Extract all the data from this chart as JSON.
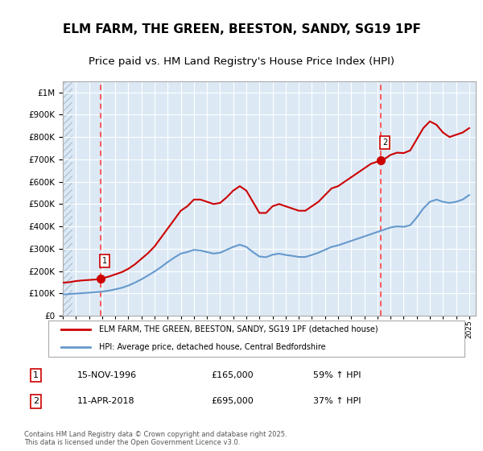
{
  "title_line1": "ELM FARM, THE GREEN, BEESTON, SANDY, SG19 1PF",
  "title_line2": "Price paid vs. HM Land Registry's House Price Index (HPI)",
  "title_fontsize": 11,
  "subtitle_fontsize": 9.5,
  "ylabel_ticks": [
    "£0",
    "£100K",
    "£200K",
    "£300K",
    "£400K",
    "£500K",
    "£600K",
    "£700K",
    "£800K",
    "£900K",
    "£1M"
  ],
  "ytick_values": [
    0,
    100000,
    200000,
    300000,
    400000,
    500000,
    600000,
    700000,
    800000,
    900000,
    1000000
  ],
  "ylim": [
    0,
    1050000
  ],
  "xlim_start": 1994.0,
  "xlim_end": 2025.5,
  "background_color": "#dce9f5",
  "plot_bg_color": "#dce9f5",
  "hatch_color": "#b0c4d8",
  "grid_color": "#ffffff",
  "red_line_color": "#cc0000",
  "blue_line_color": "#6699cc",
  "marker_color": "#cc0000",
  "dashed_line_color": "#ff4444",
  "annotation_box_color": "#ffffff",
  "annotation_border_color": "#cc0000",
  "legend_label1": "ELM FARM, THE GREEN, BEESTON, SANDY, SG19 1PF (detached house)",
  "legend_label2": "HPI: Average price, detached house, Central Bedfordshire",
  "footnote": "Contains HM Land Registry data © Crown copyright and database right 2025.\nThis data is licensed under the Open Government Licence v3.0.",
  "sale1_label": "1",
  "sale1_date": "15-NOV-1996",
  "sale1_price": "£165,000",
  "sale1_hpi": "59% ↑ HPI",
  "sale1_year": 1996.87,
  "sale1_value": 165000,
  "sale2_label": "2",
  "sale2_date": "11-APR-2018",
  "sale2_price": "£695,000",
  "sale2_hpi": "37% ↑ HPI",
  "sale2_year": 2018.28,
  "sale2_value": 695000,
  "hpi_red_x": [
    1994.0,
    1994.5,
    1995.0,
    1995.5,
    1996.0,
    1996.5,
    1996.87,
    1997.5,
    1998.0,
    1998.5,
    1999.0,
    1999.5,
    2000.0,
    2000.5,
    2001.0,
    2001.5,
    2002.0,
    2002.5,
    2003.0,
    2003.5,
    2004.0,
    2004.5,
    2005.0,
    2005.5,
    2006.0,
    2006.5,
    2007.0,
    2007.5,
    2008.0,
    2008.5,
    2009.0,
    2009.5,
    2010.0,
    2010.5,
    2011.0,
    2011.5,
    2012.0,
    2012.5,
    2013.0,
    2013.5,
    2014.0,
    2014.5,
    2015.0,
    2015.5,
    2016.0,
    2016.5,
    2017.0,
    2017.5,
    2018.0,
    2018.28
  ],
  "hpi_red_y": [
    148000,
    150000,
    155000,
    158000,
    160000,
    162000,
    165000,
    175000,
    185000,
    195000,
    210000,
    230000,
    255000,
    280000,
    310000,
    350000,
    390000,
    430000,
    470000,
    490000,
    520000,
    520000,
    510000,
    500000,
    505000,
    530000,
    560000,
    580000,
    560000,
    510000,
    460000,
    460000,
    490000,
    500000,
    490000,
    480000,
    470000,
    470000,
    490000,
    510000,
    540000,
    570000,
    580000,
    600000,
    620000,
    640000,
    660000,
    680000,
    690000,
    695000
  ],
  "hpi_blue_x": [
    1994.0,
    1994.5,
    1995.0,
    1995.5,
    1996.0,
    1996.5,
    1997.0,
    1997.5,
    1998.0,
    1998.5,
    1999.0,
    1999.5,
    2000.0,
    2000.5,
    2001.0,
    2001.5,
    2002.0,
    2002.5,
    2003.0,
    2003.5,
    2004.0,
    2004.5,
    2005.0,
    2005.5,
    2006.0,
    2006.5,
    2007.0,
    2007.5,
    2008.0,
    2008.5,
    2009.0,
    2009.5,
    2010.0,
    2010.5,
    2011.0,
    2011.5,
    2012.0,
    2012.5,
    2013.0,
    2013.5,
    2014.0,
    2014.5,
    2015.0,
    2015.5,
    2016.0,
    2016.5,
    2017.0,
    2017.5,
    2018.0,
    2018.5,
    2019.0,
    2019.5,
    2020.0,
    2020.5,
    2021.0,
    2021.5,
    2022.0,
    2022.5,
    2023.0,
    2023.5,
    2024.0,
    2024.5,
    2025.0
  ],
  "hpi_blue_y": [
    95000,
    97000,
    99000,
    101000,
    103000,
    105000,
    108000,
    112000,
    118000,
    125000,
    135000,
    148000,
    163000,
    180000,
    198000,
    218000,
    240000,
    260000,
    278000,
    285000,
    295000,
    292000,
    285000,
    278000,
    282000,
    295000,
    308000,
    318000,
    308000,
    285000,
    265000,
    262000,
    273000,
    278000,
    272000,
    268000,
    263000,
    263000,
    272000,
    282000,
    295000,
    308000,
    315000,
    325000,
    335000,
    345000,
    355000,
    365000,
    375000,
    385000,
    395000,
    400000,
    398000,
    405000,
    440000,
    480000,
    510000,
    520000,
    510000,
    505000,
    510000,
    520000,
    540000
  ],
  "hpi_red_extended_x": [
    2018.28,
    2018.5,
    2019.0,
    2019.5,
    2020.0,
    2020.5,
    2021.0,
    2021.5,
    2022.0,
    2022.5,
    2023.0,
    2023.5,
    2024.0,
    2024.5,
    2025.0
  ],
  "hpi_red_extended_y": [
    695000,
    700000,
    720000,
    730000,
    728000,
    740000,
    790000,
    840000,
    870000,
    855000,
    820000,
    800000,
    810000,
    820000,
    840000
  ]
}
